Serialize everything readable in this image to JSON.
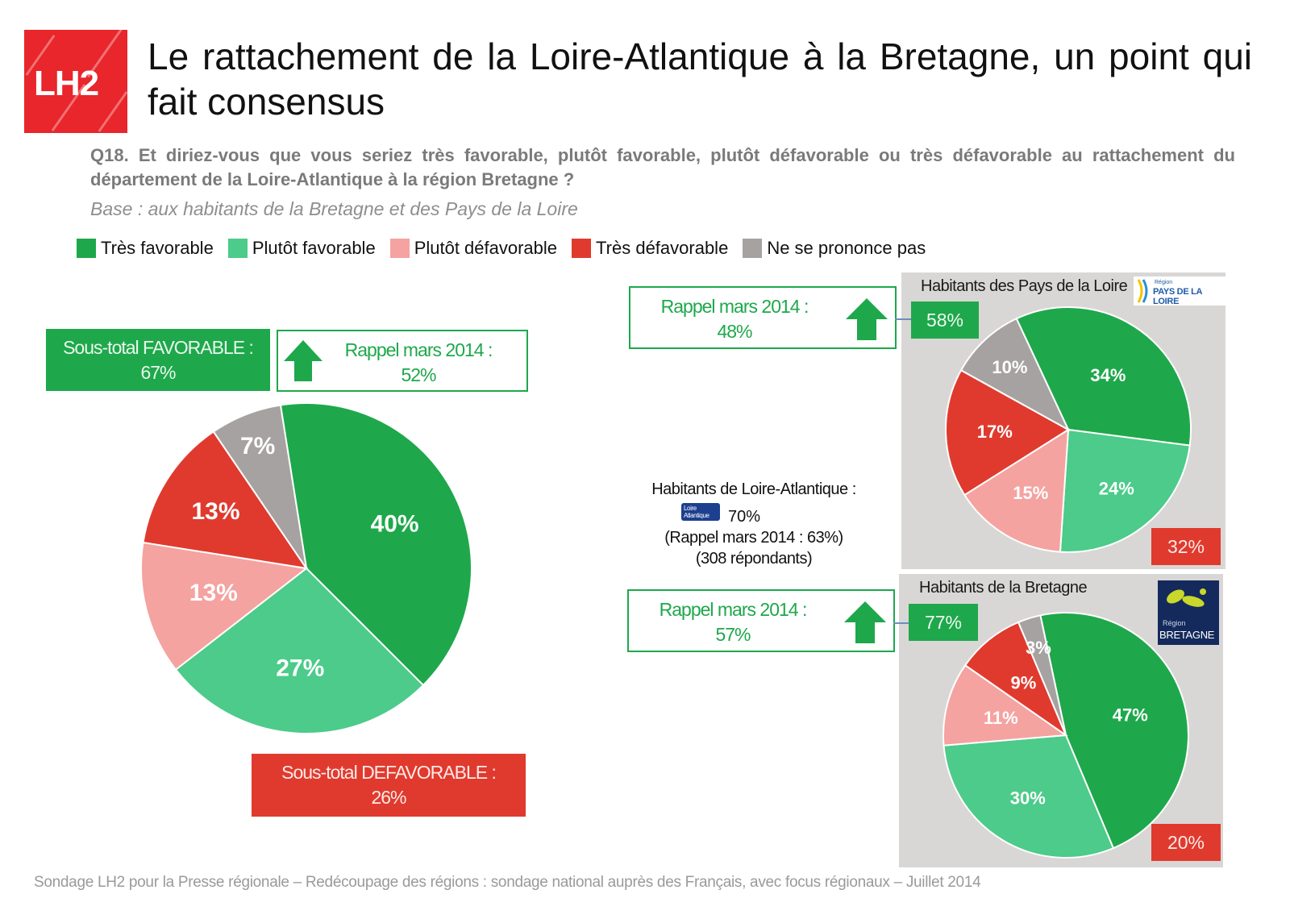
{
  "header": {
    "logo_text": "LH2",
    "title": "Le rattachement de la Loire-Atlantique à la Bretagne, un point qui fait consensus",
    "question": "Q18. Et diriez-vous que vous seriez très favorable, plutôt favorable, plutôt défavorable ou très défavorable au rattachement du département de la Loire-Atlantique à la région Bretagne ?",
    "base": "Base : aux habitants de la Bretagne et des Pays de la Loire"
  },
  "legend": [
    {
      "label": "Très favorable",
      "color": "#1ea84b"
    },
    {
      "label": "Plutôt favorable",
      "color": "#4ccb8a"
    },
    {
      "label": "Plutôt défavorable",
      "color": "#f4a3a0"
    },
    {
      "label": "Très défavorable",
      "color": "#e03a2e"
    },
    {
      "label": "Ne se prononce pas",
      "color": "#a6a2a1"
    }
  ],
  "main": {
    "subtotal_fav_label": "Sous-total FAVORABLE :",
    "subtotal_fav_value": "67%",
    "rappel_label": "Rappel mars 2014 :",
    "rappel_value": "52%",
    "subtotal_defav_label": "Sous-total DEFAVORABLE :",
    "subtotal_defav_value": "26%"
  },
  "center_note": {
    "title": "Habitants de Loire-Atlantique :",
    "logo_text": "Loire Atlantique",
    "value": "70%",
    "rappel": "(Rappel mars 2014 : 63%)",
    "respondents": "(308 répondants)"
  },
  "pays_loire": {
    "title": "Habitants des Pays de la Loire",
    "logo_small": "Région",
    "logo_text": "PAYS DE LA LOIRE",
    "rappel_label": "Rappel mars 2014 :",
    "rappel_value": "48%",
    "fav_tag": "58%",
    "defav_tag": "32%"
  },
  "bretagne": {
    "title": "Habitants de la Bretagne",
    "logo_small": "Région",
    "logo_text": "BRETAGNE",
    "rappel_label": "Rappel mars 2014 :",
    "rappel_value": "57%",
    "fav_tag": "77%",
    "defav_tag": "20%"
  },
  "footer": "Sondage LH2 pour la Presse régionale – Redécoupage des régions : sondage national auprès des Français, avec focus régionaux – Juillet 2014",
  "chart_data": [
    {
      "type": "pie",
      "categories": [
        "Très favorable",
        "Plutôt favorable",
        "Plutôt défavorable",
        "Très défavorable",
        "Ne se prononce pas"
      ],
      "values": [
        40,
        27,
        13,
        13,
        7
      ],
      "labels": [
        "40%",
        "27%",
        "13%",
        "13%",
        "7%"
      ]
    },
    {
      "type": "pie",
      "title": "Habitants des Pays de la Loire",
      "categories": [
        "Très favorable",
        "Plutôt favorable",
        "Plutôt défavorable",
        "Très défavorable",
        "Ne se prononce pas"
      ],
      "values": [
        34,
        24,
        15,
        17,
        10
      ],
      "labels": [
        "34%",
        "24%",
        "15%",
        "17%",
        "10%"
      ]
    },
    {
      "type": "pie",
      "title": "Habitants de la Bretagne",
      "categories": [
        "Très favorable",
        "Plutôt favorable",
        "Plutôt défavorable",
        "Très défavorable",
        "Ne se prononce pas"
      ],
      "values": [
        47,
        30,
        11,
        9,
        3
      ],
      "labels": [
        "47%",
        "30%",
        "11%",
        "9%",
        "3%"
      ]
    }
  ]
}
